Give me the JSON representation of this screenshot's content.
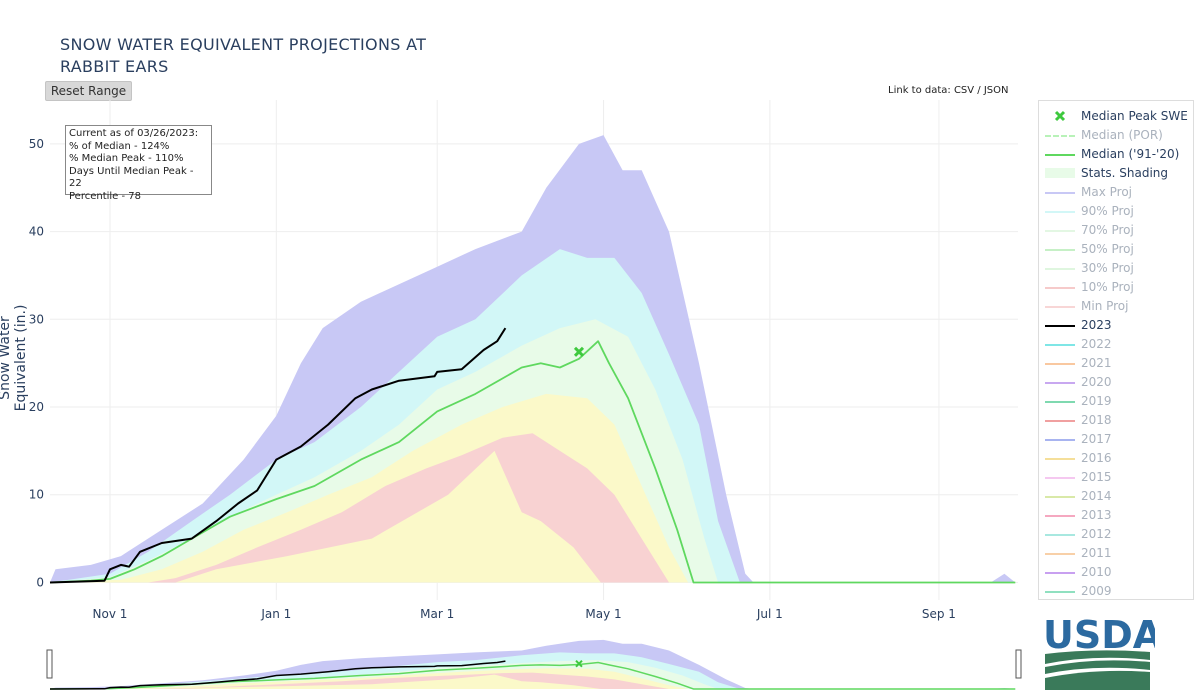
{
  "header": {
    "title_line1": "SNOW WATER EQUIVALENT PROJECTIONS AT",
    "title_line2": "RABBIT EARS",
    "reset_label": "Reset Range",
    "data_link_prefix": "Link to data: ",
    "csv_label": "CSV",
    "json_label": "JSON",
    "link_separator": " / "
  },
  "info": {
    "line1": "Current as of 03/26/2023:",
    "line2": "% of Median - 124%",
    "line3": "% Median Peak - 110%",
    "line4": "Days Until Median Peak - 22",
    "line5": "Percentile - 78"
  },
  "logo": {
    "text": "USDA",
    "colors": {
      "primary": "#2c6aa0",
      "field": "#3a7a5a"
    }
  },
  "chart_data": {
    "type": "line",
    "title": "SNOW WATER EQUIVALENT PROJECTIONS AT RABBIT EARS",
    "ylabel": "Snow Water Equivalent (in.)",
    "xlabel": "",
    "x_range": [
      "2022-10-10",
      "2023-09-30"
    ],
    "ylim": [
      -2,
      55
    ],
    "y_ticks": [
      0,
      10,
      20,
      30,
      40,
      50
    ],
    "x_ticks": [
      {
        "date": "2022-11-01",
        "label": "Nov 1"
      },
      {
        "date": "2023-01-01",
        "label": "Jan 1"
      },
      {
        "date": "2023-03-01",
        "label": "Mar 1"
      },
      {
        "date": "2023-05-01",
        "label": "May 1"
      },
      {
        "date": "2023-07-01",
        "label": "Jul 1"
      },
      {
        "date": "2023-09-01",
        "label": "Sep 1"
      }
    ],
    "grid": true,
    "legend_position": "right",
    "bands": [
      {
        "name": "Max Proj",
        "color": "#c8c8f5",
        "upper": [
          [
            "2022-10-10",
            0
          ],
          [
            "2022-10-12",
            1.5
          ],
          [
            "2022-10-25",
            2
          ],
          [
            "2022-11-05",
            3
          ],
          [
            "2022-11-20",
            6
          ],
          [
            "2022-12-05",
            9
          ],
          [
            "2022-12-20",
            14
          ],
          [
            "2023-01-01",
            19
          ],
          [
            "2023-01-10",
            25
          ],
          [
            "2023-01-18",
            29
          ],
          [
            "2023-02-01",
            32
          ],
          [
            "2023-02-15",
            34
          ],
          [
            "2023-03-01",
            36
          ],
          [
            "2023-03-15",
            38
          ],
          [
            "2023-04-01",
            40
          ],
          [
            "2023-04-10",
            45
          ],
          [
            "2023-04-22",
            50
          ],
          [
            "2023-05-01",
            51
          ],
          [
            "2023-05-08",
            47
          ],
          [
            "2023-05-15",
            47
          ],
          [
            "2023-05-25",
            40
          ],
          [
            "2023-06-05",
            25
          ],
          [
            "2023-06-15",
            10
          ],
          [
            "2023-06-22",
            1
          ],
          [
            "2023-06-25",
            0
          ],
          [
            "2023-09-20",
            0
          ],
          [
            "2023-09-25",
            1
          ],
          [
            "2023-09-29",
            0
          ]
        ],
        "lower": [
          [
            "2022-10-10",
            0
          ],
          [
            "2023-09-29",
            0
          ]
        ]
      },
      {
        "name": "90% Proj",
        "color": "#d2f7f7",
        "upper": [
          [
            "2022-10-10",
            0
          ],
          [
            "2022-11-01",
            1
          ],
          [
            "2022-11-15",
            3.5
          ],
          [
            "2022-12-01",
            7
          ],
          [
            "2022-12-15",
            10
          ],
          [
            "2023-01-01",
            14
          ],
          [
            "2023-01-15",
            16
          ],
          [
            "2023-02-01",
            20
          ],
          [
            "2023-02-15",
            24
          ],
          [
            "2023-03-01",
            28
          ],
          [
            "2023-03-15",
            30
          ],
          [
            "2023-04-01",
            35
          ],
          [
            "2023-04-15",
            38
          ],
          [
            "2023-04-25",
            37
          ],
          [
            "2023-05-05",
            37
          ],
          [
            "2023-05-15",
            33
          ],
          [
            "2023-05-25",
            26
          ],
          [
            "2023-06-05",
            18
          ],
          [
            "2023-06-12",
            7
          ],
          [
            "2023-06-20",
            0
          ]
        ],
        "lower": [
          [
            "2022-10-10",
            0
          ],
          [
            "2023-06-20",
            0
          ]
        ]
      },
      {
        "name": "70% Proj",
        "color": "#e8fbe8",
        "upper": [
          [
            "2022-10-10",
            0
          ],
          [
            "2022-11-01",
            0.6
          ],
          [
            "2022-11-15",
            2.5
          ],
          [
            "2022-12-01",
            5
          ],
          [
            "2022-12-15",
            7.5
          ],
          [
            "2023-01-01",
            10
          ],
          [
            "2023-01-15",
            12
          ],
          [
            "2023-02-01",
            15
          ],
          [
            "2023-02-15",
            18
          ],
          [
            "2023-03-01",
            22
          ],
          [
            "2023-03-15",
            24
          ],
          [
            "2023-04-01",
            27
          ],
          [
            "2023-04-15",
            29
          ],
          [
            "2023-04-28",
            30
          ],
          [
            "2023-05-10",
            28
          ],
          [
            "2023-05-20",
            22
          ],
          [
            "2023-05-30",
            14
          ],
          [
            "2023-06-07",
            5
          ],
          [
            "2023-06-12",
            0
          ]
        ],
        "lower": [
          [
            "2022-10-10",
            0
          ],
          [
            "2023-06-12",
            0
          ]
        ]
      },
      {
        "name": "30% Proj",
        "color": "#fbf9c9",
        "upper": [
          [
            "2022-10-10",
            0
          ],
          [
            "2022-11-05",
            0.3
          ],
          [
            "2022-11-20",
            1.5
          ],
          [
            "2022-12-05",
            3.5
          ],
          [
            "2022-12-20",
            6
          ],
          [
            "2023-01-05",
            8
          ],
          [
            "2023-01-20",
            10
          ],
          [
            "2023-02-05",
            12
          ],
          [
            "2023-02-20",
            15
          ],
          [
            "2023-03-10",
            18
          ],
          [
            "2023-03-25",
            20
          ],
          [
            "2023-04-10",
            21.5
          ],
          [
            "2023-04-25",
            21
          ],
          [
            "2023-05-05",
            18
          ],
          [
            "2023-05-15",
            11
          ],
          [
            "2023-05-25",
            4
          ],
          [
            "2023-06-01",
            0
          ]
        ],
        "lower": [
          [
            "2022-10-10",
            0
          ],
          [
            "2023-06-01",
            0
          ]
        ]
      },
      {
        "name": "10% Proj",
        "color": "#f8d2d2",
        "upper": [
          [
            "2022-11-15",
            0
          ],
          [
            "2022-11-25",
            0.5
          ],
          [
            "2022-12-10",
            2
          ],
          [
            "2022-12-25",
            4
          ],
          [
            "2023-01-10",
            6
          ],
          [
            "2023-01-25",
            8
          ],
          [
            "2023-02-10",
            11
          ],
          [
            "2023-02-25",
            13
          ],
          [
            "2023-03-10",
            14.5
          ],
          [
            "2023-03-25",
            16.5
          ],
          [
            "2023-04-05",
            17
          ],
          [
            "2023-04-15",
            15
          ],
          [
            "2023-04-25",
            13
          ],
          [
            "2023-05-05",
            10
          ],
          [
            "2023-05-15",
            5
          ],
          [
            "2023-05-25",
            0
          ]
        ],
        "lower": [
          [
            "2022-11-15",
            0
          ],
          [
            "2022-11-25",
            0
          ],
          [
            "2022-12-10",
            1.5
          ],
          [
            "2023-01-05",
            3
          ],
          [
            "2023-02-05",
            5
          ],
          [
            "2023-03-05",
            10
          ],
          [
            "2023-03-22",
            15
          ],
          [
            "2023-04-01",
            8
          ],
          [
            "2023-04-08",
            7
          ],
          [
            "2023-04-20",
            4
          ],
          [
            "2023-04-30",
            0
          ],
          [
            "2023-05-25",
            0
          ]
        ]
      }
    ],
    "series": [
      {
        "name": "Median ('91-'20)",
        "color": "#5fd85f",
        "points": [
          [
            "2022-10-10",
            0
          ],
          [
            "2022-10-25",
            0.2
          ],
          [
            "2022-11-01",
            0.4
          ],
          [
            "2022-11-10",
            1.5
          ],
          [
            "2022-11-20",
            3
          ],
          [
            "2022-12-01",
            5
          ],
          [
            "2022-12-15",
            7.5
          ],
          [
            "2023-01-01",
            9.5
          ],
          [
            "2023-01-15",
            11
          ],
          [
            "2023-02-01",
            14
          ],
          [
            "2023-02-15",
            16
          ],
          [
            "2023-03-01",
            19.5
          ],
          [
            "2023-03-15",
            21.5
          ],
          [
            "2023-04-01",
            24.5
          ],
          [
            "2023-04-08",
            25
          ],
          [
            "2023-04-15",
            24.5
          ],
          [
            "2023-04-22",
            25.5
          ],
          [
            "2023-04-29",
            27.5
          ],
          [
            "2023-05-03",
            25
          ],
          [
            "2023-05-10",
            21
          ],
          [
            "2023-05-20",
            13
          ],
          [
            "2023-05-28",
            6
          ],
          [
            "2023-06-03",
            0
          ],
          [
            "2023-09-29",
            0
          ]
        ]
      },
      {
        "name": "2023",
        "color": "#000000",
        "points": [
          [
            "2022-10-10",
            0
          ],
          [
            "2022-10-30",
            0.2
          ],
          [
            "2022-11-01",
            1.5
          ],
          [
            "2022-11-05",
            2
          ],
          [
            "2022-11-08",
            1.8
          ],
          [
            "2022-11-12",
            3.5
          ],
          [
            "2022-11-20",
            4.5
          ],
          [
            "2022-12-01",
            5
          ],
          [
            "2022-12-10",
            7
          ],
          [
            "2022-12-18",
            9
          ],
          [
            "2022-12-25",
            10.5
          ],
          [
            "2023-01-01",
            14
          ],
          [
            "2023-01-10",
            15.5
          ],
          [
            "2023-01-20",
            18
          ],
          [
            "2023-01-30",
            21
          ],
          [
            "2023-02-05",
            22
          ],
          [
            "2023-02-15",
            23
          ],
          [
            "2023-02-28",
            23.5
          ],
          [
            "2023-03-01",
            24
          ],
          [
            "2023-03-10",
            24.3
          ],
          [
            "2023-03-18",
            26.5
          ],
          [
            "2023-03-23",
            27.5
          ],
          [
            "2023-03-26",
            29
          ]
        ]
      }
    ],
    "markers": [
      {
        "name": "Median Peak SWE",
        "date": "2023-04-22",
        "value": 26.3,
        "color": "#3ec93e"
      }
    ],
    "legend": [
      {
        "label": "Median Peak SWE",
        "color": "#3ec93e",
        "kind": "x",
        "active": true
      },
      {
        "label": "Median (POR)",
        "color": "#b8f2b8",
        "kind": "dash",
        "active": false
      },
      {
        "label": "Median ('91-'20)",
        "color": "#5fd85f",
        "kind": "line",
        "active": true
      },
      {
        "label": "Stats. Shading",
        "color": "#e8fbe8",
        "kind": "band",
        "active": true
      },
      {
        "label": "Max Proj",
        "color": "#c8c8f5",
        "kind": "line",
        "active": false
      },
      {
        "label": "90% Proj",
        "color": "#d2f7f7",
        "kind": "line",
        "active": false
      },
      {
        "label": "70% Proj",
        "color": "#e3f7e3",
        "kind": "line",
        "active": false
      },
      {
        "label": "50% Proj",
        "color": "#c6f0c6",
        "kind": "line",
        "active": false
      },
      {
        "label": "30% Proj",
        "color": "#dff6df",
        "kind": "line",
        "active": false
      },
      {
        "label": "10% Proj",
        "color": "#f6caca",
        "kind": "line",
        "active": false
      },
      {
        "label": "Min Proj",
        "color": "#f8d6d6",
        "kind": "line",
        "active": false
      },
      {
        "label": "2023",
        "color": "#000000",
        "kind": "line",
        "active": true
      },
      {
        "label": "2022",
        "color": "#7fe6e6",
        "kind": "line",
        "active": false
      },
      {
        "label": "2021",
        "color": "#f9c8a0",
        "kind": "line",
        "active": false
      },
      {
        "label": "2020",
        "color": "#c8a8f0",
        "kind": "line",
        "active": false
      },
      {
        "label": "2019",
        "color": "#7fd9b0",
        "kind": "line",
        "active": false
      },
      {
        "label": "2018",
        "color": "#f0a0a0",
        "kind": "line",
        "active": false
      },
      {
        "label": "2017",
        "color": "#a8b4f0",
        "kind": "line",
        "active": false
      },
      {
        "label": "2016",
        "color": "#f5df9a",
        "kind": "line",
        "active": false
      },
      {
        "label": "2015",
        "color": "#f5c8f0",
        "kind": "line",
        "active": false
      },
      {
        "label": "2014",
        "color": "#d9e9a8",
        "kind": "line",
        "active": false
      },
      {
        "label": "2013",
        "color": "#f5a8c0",
        "kind": "line",
        "active": false
      },
      {
        "label": "2012",
        "color": "#a8e8e0",
        "kind": "line",
        "active": false
      },
      {
        "label": "2011",
        "color": "#f8d0a8",
        "kind": "line",
        "active": false
      },
      {
        "label": "2010",
        "color": "#c8a0f0",
        "kind": "line",
        "active": false
      },
      {
        "label": "2009",
        "color": "#90e0c0",
        "kind": "line",
        "active": false
      }
    ]
  }
}
